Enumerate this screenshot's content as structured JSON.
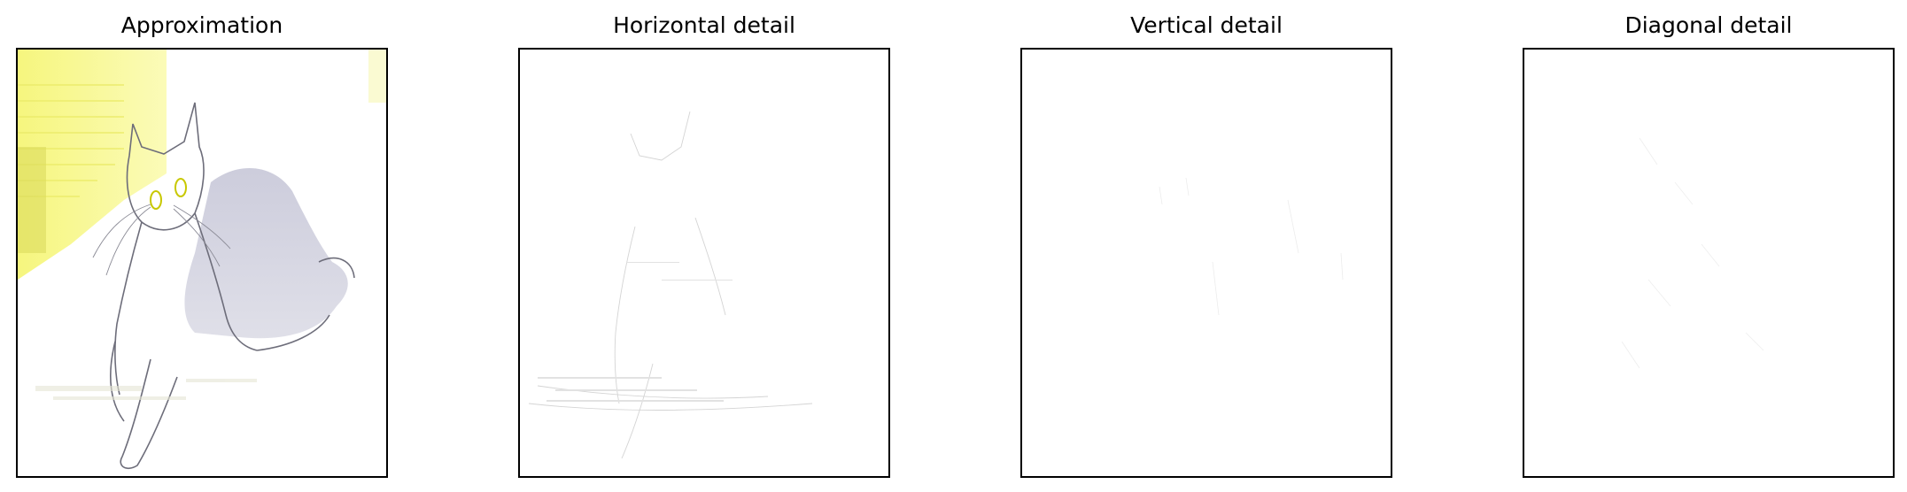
{
  "figure": {
    "panels": [
      {
        "title": "Approximation"
      },
      {
        "title": "Horizontal detail"
      },
      {
        "title": "Vertical detail"
      },
      {
        "title": "Diagonal detail"
      }
    ]
  },
  "colors": {
    "frame": "#000000",
    "background": "#ffffff",
    "wall_tint": "#f4f47a",
    "cat_shadow": "#c9c9d6",
    "eye_ring": "#c8c800"
  }
}
